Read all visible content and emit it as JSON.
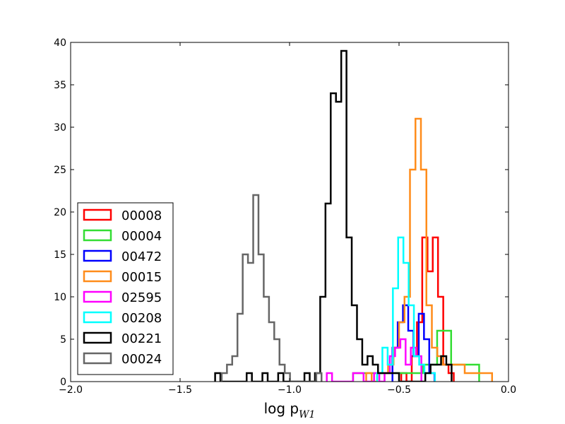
{
  "chart_data": {
    "type": "histogram",
    "title": "",
    "xlabel": "log p",
    "xlabel_subscript": "W1",
    "ylabel": "",
    "xlim": [
      -2.0,
      0.0
    ],
    "ylim": [
      0,
      40
    ],
    "xticks": [
      -2.0,
      -1.5,
      -1.0,
      -0.5,
      0.0
    ],
    "xtick_labels": [
      "−2.0",
      "−1.5",
      "−1.0",
      "−0.5",
      "0.0"
    ],
    "yticks": [
      0,
      5,
      10,
      15,
      20,
      25,
      30,
      35,
      40
    ],
    "ytick_labels": [
      "0",
      "5",
      "10",
      "15",
      "20",
      "25",
      "30",
      "35",
      "40"
    ],
    "grid": false,
    "legend_position": "lower-left",
    "series": [
      {
        "name": "00008",
        "color": "#ff0000",
        "edges": [
          -0.49,
          -0.466,
          -0.442,
          -0.418,
          -0.394,
          -0.37,
          -0.346,
          -0.322,
          -0.298,
          -0.274,
          -0.25
        ],
        "counts": [
          1,
          0,
          3,
          7,
          17,
          13,
          17,
          10,
          2,
          1
        ]
      },
      {
        "name": "00004",
        "color": "#33dd33",
        "edges": [
          -0.71,
          -0.646,
          -0.582,
          -0.518,
          -0.454,
          -0.39,
          -0.326,
          -0.262,
          -0.198,
          -0.134
        ],
        "counts": [
          1,
          1,
          1,
          1,
          1,
          2,
          6,
          2,
          2
        ]
      },
      {
        "name": "00472",
        "color": "#0000ff",
        "edges": [
          -0.53,
          -0.506,
          -0.482,
          -0.458,
          -0.434,
          -0.41,
          -0.386,
          -0.362,
          -0.338
        ],
        "counts": [
          4,
          7,
          9,
          6,
          3,
          8,
          5,
          1
        ]
      },
      {
        "name": "00015",
        "color": "#ff8c1a",
        "edges": [
          -0.65,
          -0.625,
          -0.6,
          -0.575,
          -0.55,
          -0.525,
          -0.5,
          -0.475,
          -0.45,
          -0.425,
          -0.4,
          -0.375,
          -0.35,
          -0.325,
          -0.3,
          -0.275,
          -0.25,
          -0.225,
          -0.2,
          -0.175,
          -0.15,
          -0.125,
          -0.1,
          -0.075
        ],
        "counts": [
          1,
          0,
          1,
          1,
          2,
          4,
          7,
          10,
          25,
          31,
          25,
          9,
          4,
          3,
          2,
          2,
          2,
          2,
          1,
          1,
          1,
          1,
          1
        ]
      },
      {
        "name": "02595",
        "color": "#ff00ff",
        "edges": [
          -0.83,
          -0.806,
          -0.782,
          -0.758,
          -0.734,
          -0.71,
          -0.686,
          -0.662,
          -0.638,
          -0.614,
          -0.59,
          -0.566,
          -0.542,
          -0.518,
          -0.494,
          -0.47,
          -0.446,
          -0.422,
          -0.398
        ],
        "counts": [
          1,
          0,
          0,
          0,
          0,
          1,
          1,
          0,
          0,
          1,
          0,
          1,
          3,
          4,
          5,
          2,
          4,
          3
        ]
      },
      {
        "name": "00208",
        "color": "#00ffff",
        "edges": [
          -0.6,
          -0.576,
          -0.552,
          -0.528,
          -0.504,
          -0.48,
          -0.456,
          -0.432,
          -0.408,
          -0.384,
          -0.36,
          -0.336
        ],
        "counts": [
          1,
          4,
          2,
          11,
          17,
          14,
          9,
          3,
          2,
          1,
          1
        ]
      },
      {
        "name": "00221",
        "color": "#000000",
        "edges": [
          -1.34,
          -1.316,
          -1.292,
          -1.268,
          -1.244,
          -1.22,
          -1.196,
          -1.172,
          -1.148,
          -1.124,
          -1.1,
          -1.076,
          -1.052,
          -1.028,
          -1.004,
          -0.98,
          -0.956,
          -0.932,
          -0.908,
          -0.884,
          -0.86,
          -0.836,
          -0.812,
          -0.788,
          -0.764,
          -0.74,
          -0.716,
          -0.692,
          -0.668,
          -0.644,
          -0.62,
          -0.596,
          -0.572,
          -0.548,
          -0.524,
          -0.5,
          -0.476,
          -0.452,
          -0.428,
          -0.404,
          -0.38,
          -0.356,
          -0.332,
          -0.308,
          -0.284,
          -0.26
        ],
        "counts": [
          1,
          0,
          0,
          0,
          0,
          0,
          1,
          0,
          0,
          1,
          0,
          0,
          1,
          0,
          0,
          0,
          0,
          1,
          0,
          1,
          10,
          21,
          34,
          33,
          39,
          17,
          9,
          5,
          2,
          3,
          2,
          1,
          1,
          1,
          1,
          0,
          0,
          0,
          0,
          0,
          1,
          2,
          2,
          3,
          2
        ]
      },
      {
        "name": "00024",
        "color": "#666666",
        "edges": [
          -1.31,
          -1.286,
          -1.262,
          -1.238,
          -1.214,
          -1.19,
          -1.166,
          -1.142,
          -1.118,
          -1.094,
          -1.07,
          -1.046,
          -1.022,
          -0.998,
          -0.974,
          -0.95,
          -0.926,
          -0.902,
          -0.878,
          -0.854
        ],
        "counts": [
          1,
          2,
          3,
          8,
          15,
          14,
          22,
          15,
          10,
          7,
          5,
          2,
          1,
          0,
          0,
          0,
          0,
          0,
          1
        ]
      }
    ]
  }
}
